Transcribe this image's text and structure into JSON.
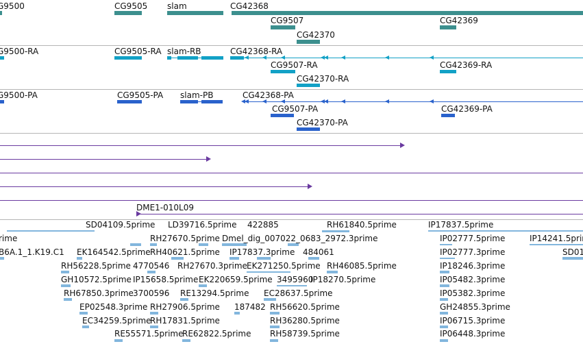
{
  "colors": {
    "gene": "#3c8f8e",
    "transcript": "#12a1c6",
    "protein": "#2a62cc",
    "clone": "#6a3aa0",
    "est": "#82b6dd",
    "separator": "#b5b5b5"
  },
  "gene_track": {
    "labels": [
      "G9500",
      "CG9505",
      "slam",
      "CG42368",
      "CG9507",
      "CG42370",
      "CG42369"
    ]
  },
  "transcript_track": {
    "labels": [
      "G9500-RA",
      "CG9505-RA",
      "slam-RB",
      "CG42368-RA",
      "CG9507-RA",
      "CG42370-RA",
      "CG42369-RA"
    ]
  },
  "protein_track": {
    "labels": [
      "G9500-PA",
      "CG9505-PA",
      "slam-PB",
      "CG42368-PA",
      "CG9507-PA",
      "CG42370-PA",
      "CG42369-PA"
    ]
  },
  "clone_track": {
    "labels": [
      "DME1-010L09"
    ]
  },
  "est_track": {
    "labels": [
      "SD04109.5prime",
      "LD39716.5prime",
      "422885",
      "RH61840.5prime",
      "IP17837.5prime",
      "rime",
      "RH27670.5prime",
      "Dmel_dig_007022_0683_2972.3prime",
      "IP02777.5prime",
      "IP14241.5prime",
      "B6A.1_1.K19.C1",
      "EK164542.5prime",
      "RH40621.5prime",
      "IP17837.3prime",
      "484061",
      "IP02777.3prime",
      "SD01",
      "RH56228.5prime",
      "4770546",
      "RH27670.3prime",
      "EK271250.5prime",
      "RH46085.5prime",
      "IP18246.3prime",
      "GH10572.5prime",
      "IP15658.5prime",
      "EK220659.5prime",
      "3495960",
      "IP18270.5prime",
      "IP05482.3prime",
      "RH67850.3prime",
      "3700596",
      "RE13294.5prime",
      "EC28637.5prime",
      "IP05382.3prime",
      "EP02548.3prime",
      "RH27906.5prime",
      "187482",
      "RH56620.5prime",
      "GH24855.3prime",
      "EC34259.5prime",
      "RH17831.5prime",
      "RH36280.5prime",
      "IP06715.3prime",
      "RE55571.5prime",
      "RE62822.5prime",
      "RH58739.5prime",
      "IP06448.3prime"
    ]
  }
}
